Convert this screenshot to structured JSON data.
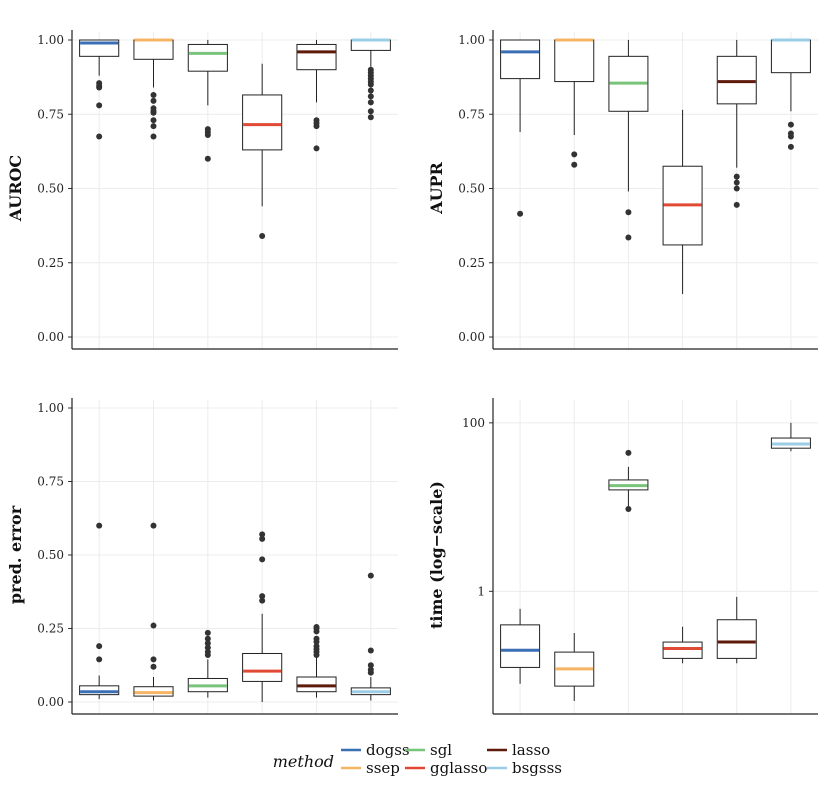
{
  "colors": {
    "dogss": "#3a6fb6",
    "ssep": "#f6b565",
    "sgl": "#79c47a",
    "gglasso": "#e04a35",
    "lasso": "#5e1a0a",
    "bsgsss": "#9ccde6",
    "grid": "#ececec",
    "box": "#222222",
    "outlier": "#333333"
  },
  "legend": {
    "title": "method",
    "entries": [
      "dogss",
      "ssep",
      "sgl",
      "gglasso",
      "lasso",
      "bsgsss"
    ]
  },
  "chart_data": [
    {
      "id": "auroc",
      "type": "box",
      "ylabel": "AUROC",
      "scale": "linear",
      "ylim": [
        0,
        1
      ],
      "ticks": [
        0,
        0.25,
        0.5,
        0.75,
        1
      ],
      "tick_labels": [
        "0.00",
        "0.25",
        "0.50",
        "0.75",
        "1.00"
      ],
      "methods": [
        "dogss",
        "ssep",
        "sgl",
        "gglasso",
        "lasso",
        "bsgsss"
      ],
      "boxes": [
        {
          "q1": 0.945,
          "median": 0.99,
          "q3": 1.0,
          "wlo": 0.88,
          "whi": 1.0,
          "outliers": [
            0.855,
            0.845,
            0.84,
            0.78,
            0.675
          ]
        },
        {
          "q1": 0.935,
          "median": 1.0,
          "q3": 1.0,
          "wlo": 0.84,
          "whi": 1.0,
          "outliers": [
            0.815,
            0.795,
            0.77,
            0.76,
            0.755,
            0.73,
            0.71,
            0.675
          ]
        },
        {
          "q1": 0.895,
          "median": 0.955,
          "q3": 0.985,
          "wlo": 0.78,
          "whi": 1.0,
          "outliers": [
            0.7,
            0.69,
            0.68,
            0.6
          ]
        },
        {
          "q1": 0.63,
          "median": 0.715,
          "q3": 0.815,
          "wlo": 0.44,
          "whi": 0.92,
          "outliers": [
            0.34
          ]
        },
        {
          "q1": 0.9,
          "median": 0.96,
          "q3": 0.985,
          "wlo": 0.79,
          "whi": 1.0,
          "outliers": [
            0.73,
            0.72,
            0.71,
            0.635
          ]
        },
        {
          "q1": 0.965,
          "median": 1.0,
          "q3": 1.0,
          "wlo": 0.91,
          "whi": 1.0,
          "outliers": [
            0.9,
            0.89,
            0.88,
            0.87,
            0.86,
            0.85,
            0.83,
            0.81,
            0.79,
            0.76,
            0.74
          ]
        }
      ]
    },
    {
      "id": "aupr",
      "type": "box",
      "ylabel": "AUPR",
      "scale": "linear",
      "ylim": [
        0,
        1
      ],
      "ticks": [
        0,
        0.25,
        0.5,
        0.75,
        1
      ],
      "tick_labels": [
        "0.00",
        "0.25",
        "0.50",
        "0.75",
        "1.00"
      ],
      "methods": [
        "dogss",
        "ssep",
        "sgl",
        "gglasso",
        "lasso",
        "bsgsss"
      ],
      "boxes": [
        {
          "q1": 0.87,
          "median": 0.96,
          "q3": 1.0,
          "wlo": 0.69,
          "whi": 1.0,
          "outliers": [
            0.415
          ]
        },
        {
          "q1": 0.86,
          "median": 1.0,
          "q3": 1.0,
          "wlo": 0.68,
          "whi": 1.0,
          "outliers": [
            0.615,
            0.58
          ]
        },
        {
          "q1": 0.76,
          "median": 0.855,
          "q3": 0.945,
          "wlo": 0.49,
          "whi": 1.0,
          "outliers": [
            0.42,
            0.335
          ]
        },
        {
          "q1": 0.31,
          "median": 0.445,
          "q3": 0.575,
          "wlo": 0.145,
          "whi": 0.765,
          "outliers": []
        },
        {
          "q1": 0.785,
          "median": 0.86,
          "q3": 0.945,
          "wlo": 0.57,
          "whi": 1.0,
          "outliers": [
            0.54,
            0.52,
            0.5,
            0.445
          ]
        },
        {
          "q1": 0.89,
          "median": 1.0,
          "q3": 1.0,
          "wlo": 0.76,
          "whi": 1.0,
          "outliers": [
            0.715,
            0.685,
            0.675,
            0.64
          ]
        }
      ]
    },
    {
      "id": "prederror",
      "type": "box",
      "ylabel": "pred. error",
      "scale": "linear",
      "ylim": [
        0,
        1
      ],
      "ticks": [
        0,
        0.25,
        0.5,
        0.75,
        1
      ],
      "tick_labels": [
        "0.00",
        "0.25",
        "0.50",
        "0.75",
        "1.00"
      ],
      "methods": [
        "dogss",
        "ssep",
        "sgl",
        "gglasso",
        "lasso",
        "bsgsss"
      ],
      "boxes": [
        {
          "q1": 0.025,
          "median": 0.035,
          "q3": 0.055,
          "wlo": 0.01,
          "whi": 0.09,
          "outliers": [
            0.6,
            0.19,
            0.145
          ]
        },
        {
          "q1": 0.02,
          "median": 0.032,
          "q3": 0.052,
          "wlo": 0.005,
          "whi": 0.085,
          "outliers": [
            0.6,
            0.26,
            0.145,
            0.12
          ]
        },
        {
          "q1": 0.035,
          "median": 0.055,
          "q3": 0.08,
          "wlo": 0.015,
          "whi": 0.145,
          "outliers": [
            0.235,
            0.215,
            0.2,
            0.185,
            0.17,
            0.16
          ]
        },
        {
          "q1": 0.07,
          "median": 0.105,
          "q3": 0.165,
          "wlo": 0.0,
          "whi": 0.3,
          "outliers": [
            0.57,
            0.555,
            0.485,
            0.36,
            0.345
          ]
        },
        {
          "q1": 0.035,
          "median": 0.055,
          "q3": 0.085,
          "wlo": 0.015,
          "whi": 0.155,
          "outliers": [
            0.255,
            0.25,
            0.24,
            0.215,
            0.205,
            0.19,
            0.18,
            0.17,
            0.16
          ]
        },
        {
          "q1": 0.025,
          "median": 0.035,
          "q3": 0.048,
          "wlo": 0.005,
          "whi": 0.085,
          "outliers": [
            0.43,
            0.175,
            0.125,
            0.11,
            0.1
          ]
        }
      ]
    },
    {
      "id": "time",
      "type": "box",
      "ylabel": "time (log−scale)",
      "scale": "log",
      "ylim": [
        0.035,
        150
      ],
      "ticks": [
        1,
        100
      ],
      "tick_labels": [
        "1",
        "100"
      ],
      "methods": [
        "dogss",
        "ssep",
        "sgl",
        "gglasso",
        "lasso",
        "bsgsss"
      ],
      "boxes": [
        {
          "q1": 0.125,
          "median": 0.2,
          "q3": 0.4,
          "wlo": 0.08,
          "whi": 0.62,
          "outliers": []
        },
        {
          "q1": 0.075,
          "median": 0.12,
          "q3": 0.19,
          "wlo": 0.05,
          "whi": 0.32,
          "outliers": []
        },
        {
          "q1": 16,
          "median": 18,
          "q3": 21,
          "wlo": 10,
          "whi": 30,
          "outliers": [
            44,
            9.5
          ]
        },
        {
          "q1": 0.16,
          "median": 0.21,
          "q3": 0.25,
          "wlo": 0.14,
          "whi": 0.38,
          "outliers": []
        },
        {
          "q1": 0.16,
          "median": 0.25,
          "q3": 0.46,
          "wlo": 0.14,
          "whi": 0.86,
          "outliers": []
        },
        {
          "q1": 50,
          "median": 56,
          "q3": 66,
          "wlo": 46,
          "whi": 100,
          "outliers": []
        }
      ]
    }
  ]
}
